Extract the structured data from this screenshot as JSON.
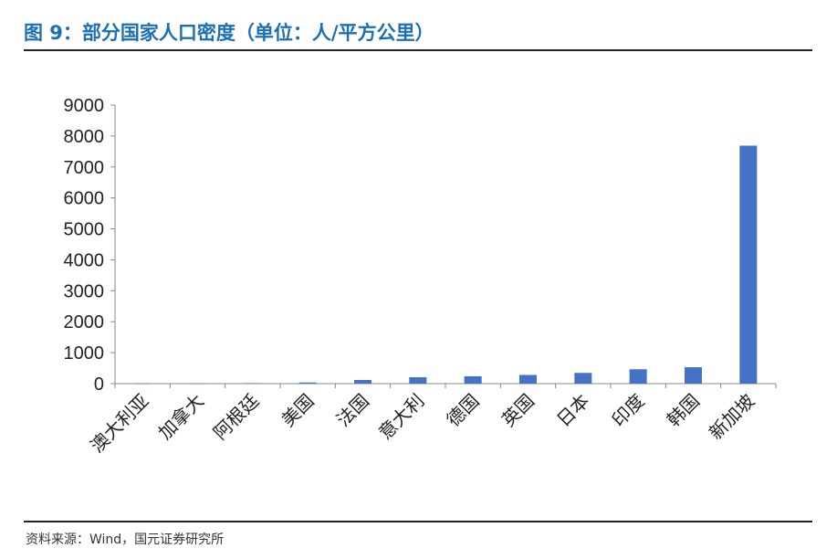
{
  "page": {
    "title": "图 9：部分国家人口密度（单位：人/平方公里）",
    "source": "资料来源：Wind，国元证券研究所",
    "accent_color": "#1a6fb7",
    "bar_color": "#4472c4"
  },
  "chart_data": {
    "type": "bar",
    "title": "",
    "xlabel": "",
    "ylabel": "",
    "categories": [
      "澳大利亚",
      "加拿大",
      "阿根廷",
      "美国",
      "法国",
      "意大利",
      "德国",
      "英国",
      "日本",
      "印度",
      "韩国",
      "新加坡"
    ],
    "values": [
      3,
      4,
      16,
      36,
      119,
      206,
      237,
      281,
      347,
      464,
      530,
      7688
    ],
    "ylim": [
      0,
      9000
    ],
    "yticks": [
      0,
      1000,
      2000,
      3000,
      4000,
      5000,
      6000,
      7000,
      8000,
      9000
    ],
    "grid": false,
    "legend": "none"
  }
}
